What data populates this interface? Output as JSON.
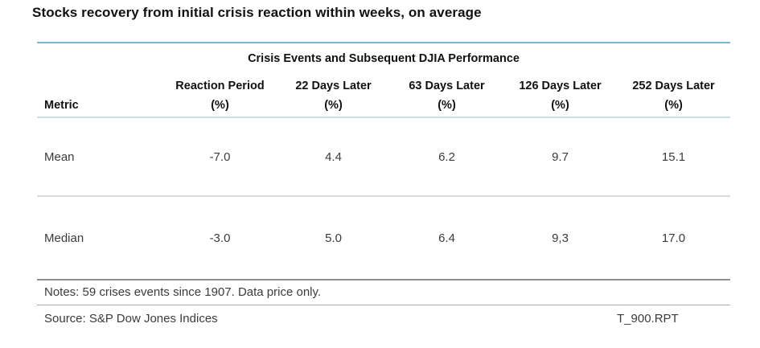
{
  "page": {
    "title": "Stocks recovery from initial crisis reaction within weeks, on average"
  },
  "table": {
    "title": "Crisis Events and Subsequent DJIA Performance",
    "metric_header": "Metric",
    "columns": [
      {
        "label": "Reaction Period",
        "unit": "(%)"
      },
      {
        "label": "22 Days Later",
        "unit": "(%)"
      },
      {
        "label": "63 Days Later",
        "unit": "(%)"
      },
      {
        "label": "126 Days Later",
        "unit": "(%)"
      },
      {
        "label": "252 Days Later",
        "unit": "(%)"
      }
    ],
    "rows": [
      {
        "metric": "Mean",
        "values": [
          "-7.0",
          "4.4",
          "6.2",
          "9.7",
          "15.1"
        ]
      },
      {
        "metric": "Median",
        "values": [
          "-3.0",
          "5.0",
          "6.4",
          "9,3",
          "17.0"
        ]
      }
    ],
    "notes": "Notes: 59 crises events since 1907. Data price only.",
    "source": "Source: S&P Dow Jones Indices",
    "report_id": "T_900.RPT"
  },
  "colors": {
    "accent_top_rule": "#7eb3d6",
    "header_underline": "#c9dfec",
    "row_divider": "#dbdbdb",
    "median_bottom_rule": "#8f8f8f",
    "notes_bottom_rule": "#a9a9a9",
    "title_text": "#111111",
    "body_text": "#3b3b3b"
  }
}
